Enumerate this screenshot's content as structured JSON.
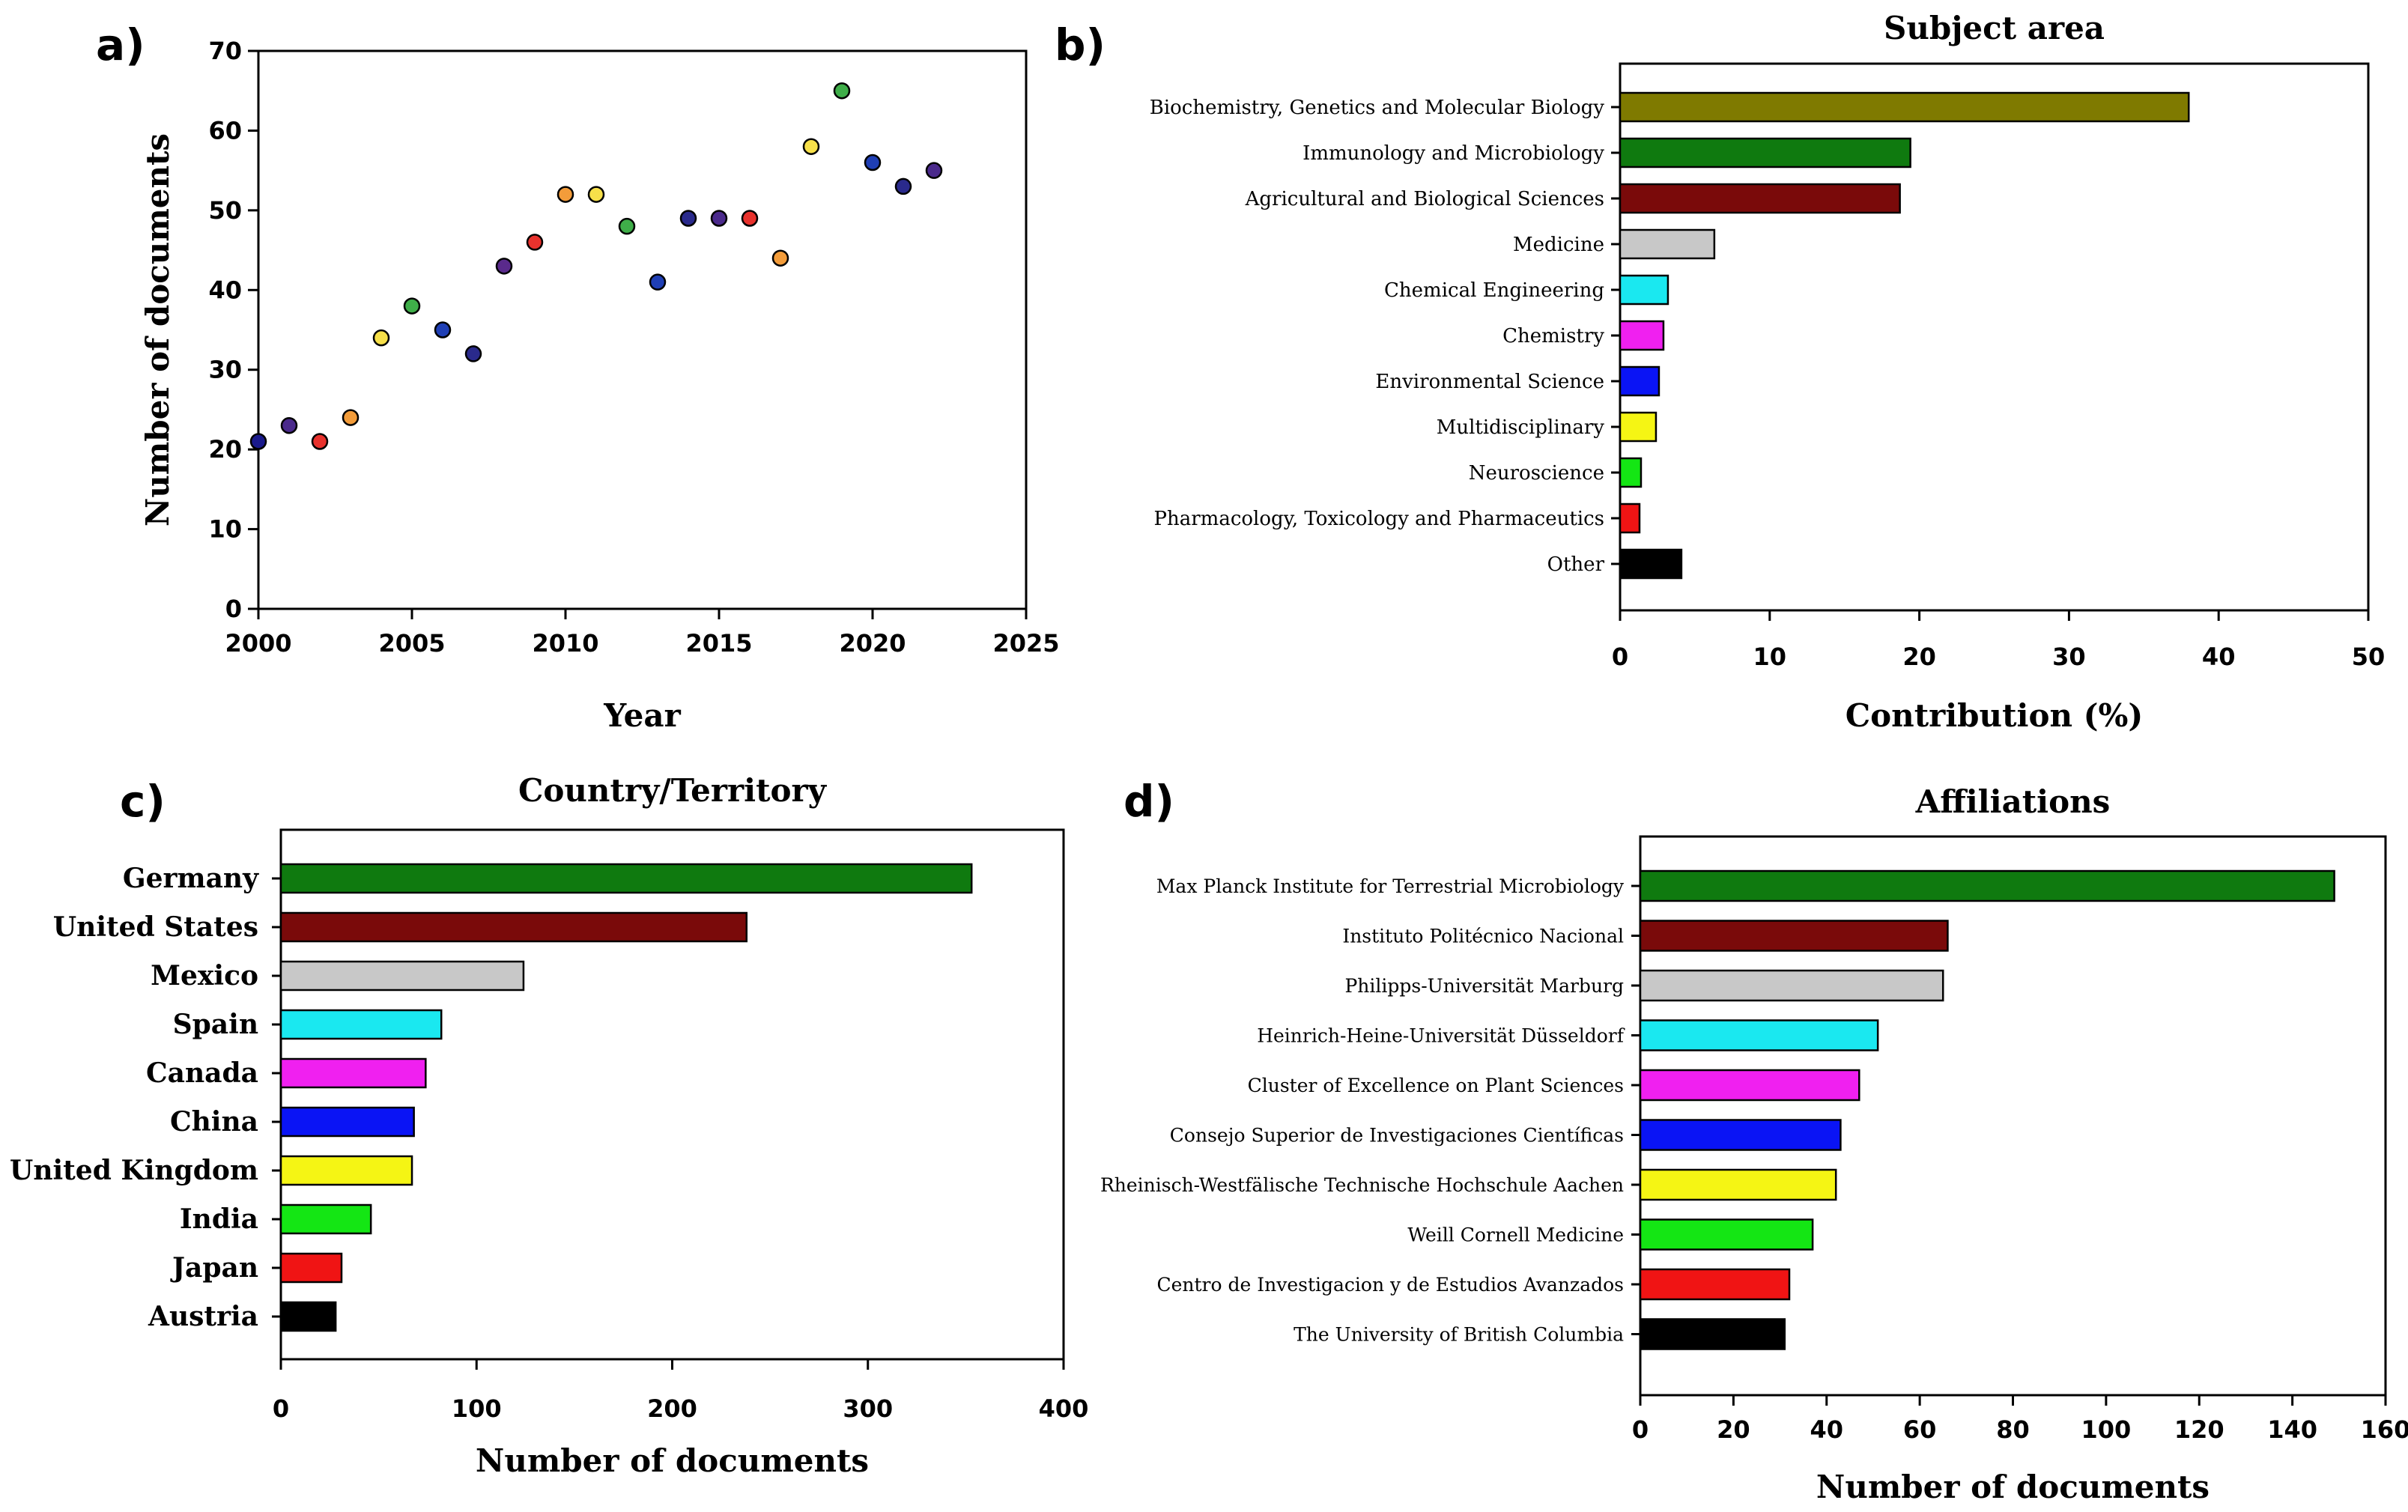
{
  "panels": {
    "a": {
      "letter": "a)"
    },
    "b": {
      "letter": "b)"
    },
    "c": {
      "letter": "c)"
    },
    "d": {
      "letter": "d)"
    }
  },
  "chart_data": [
    {
      "id": "a",
      "type": "scatter",
      "title": "",
      "xlabel": "Year",
      "ylabel": "Number of documents",
      "xlim": [
        2000,
        2025
      ],
      "ylim": [
        0,
        70
      ],
      "xticks": [
        2000,
        2005,
        2010,
        2015,
        2020,
        2025
      ],
      "yticks": [
        0,
        10,
        20,
        30,
        40,
        50,
        60,
        70
      ],
      "points": [
        {
          "x": 2000,
          "y": 21,
          "color": "#1a1a8c"
        },
        {
          "x": 2001,
          "y": 23,
          "color": "#4b2a8c"
        },
        {
          "x": 2002,
          "y": 21,
          "color": "#e8322d"
        },
        {
          "x": 2003,
          "y": 24,
          "color": "#f39c3a"
        },
        {
          "x": 2004,
          "y": 34,
          "color": "#f7e04a"
        },
        {
          "x": 2005,
          "y": 38,
          "color": "#3fae49"
        },
        {
          "x": 2006,
          "y": 35,
          "color": "#1f3fb5"
        },
        {
          "x": 2007,
          "y": 32,
          "color": "#2a2a8c"
        },
        {
          "x": 2008,
          "y": 43,
          "color": "#5a2a8c"
        },
        {
          "x": 2009,
          "y": 46,
          "color": "#e8322d"
        },
        {
          "x": 2010,
          "y": 52,
          "color": "#f39c3a"
        },
        {
          "x": 2011,
          "y": 52,
          "color": "#f7e04a"
        },
        {
          "x": 2012,
          "y": 48,
          "color": "#3fae49"
        },
        {
          "x": 2013,
          "y": 41,
          "color": "#1f3fb5"
        },
        {
          "x": 2014,
          "y": 49,
          "color": "#2a2a8c"
        },
        {
          "x": 2015,
          "y": 49,
          "color": "#4b2a8c"
        },
        {
          "x": 2016,
          "y": 49,
          "color": "#e8322d"
        },
        {
          "x": 2017,
          "y": 44,
          "color": "#f39c3a"
        },
        {
          "x": 2018,
          "y": 58,
          "color": "#f7e04a"
        },
        {
          "x": 2019,
          "y": 65,
          "color": "#3fae49"
        },
        {
          "x": 2020,
          "y": 56,
          "color": "#1f3fb5"
        },
        {
          "x": 2021,
          "y": 53,
          "color": "#2a2a8c"
        },
        {
          "x": 2022,
          "y": 55,
          "color": "#4b2a8c"
        }
      ]
    },
    {
      "id": "b",
      "type": "bar",
      "orientation": "horizontal",
      "title": "Subject area",
      "xlabel": "Contribution (%)",
      "ylabel": "",
      "xlim": [
        0,
        50
      ],
      "xticks": [
        0,
        10,
        20,
        30,
        40,
        50
      ],
      "categories": [
        "Biochemistry, Genetics and Molecular Biology",
        "Immunology and Microbiology",
        "Agricultural and Biological Sciences",
        "Medicine",
        "Chemical Engineering",
        "Chemistry",
        "Environmental Science",
        "Multidisciplinary",
        "Neuroscience",
        "Pharmacology, Toxicology and Pharmaceutics",
        "Other"
      ],
      "values": [
        38.0,
        19.4,
        18.7,
        6.3,
        3.2,
        2.9,
        2.6,
        2.4,
        1.4,
        1.3,
        4.1
      ],
      "colors": [
        "#7f7a00",
        "#0f7a0f",
        "#7a0a0a",
        "#c8c8c8",
        "#1ae8f0",
        "#f020f0",
        "#0a14f5",
        "#f5f514",
        "#14e614",
        "#f01414",
        "#000000"
      ]
    },
    {
      "id": "c",
      "type": "bar",
      "orientation": "horizontal",
      "title": "Country/Territory",
      "xlabel": "Number of documents",
      "ylabel": "",
      "xlim": [
        0,
        400
      ],
      "xticks": [
        0,
        100,
        200,
        300,
        400
      ],
      "categories": [
        "Germany",
        "United States",
        "Mexico",
        "Spain",
        "Canada",
        "China",
        "United Kingdom",
        "India",
        "Japan",
        "Austria"
      ],
      "values": [
        353,
        238,
        124,
        82,
        74,
        68,
        67,
        46,
        31,
        28
      ],
      "colors": [
        "#0f7a0f",
        "#7a0a0a",
        "#c8c8c8",
        "#1ae8f0",
        "#f020f0",
        "#0a14f5",
        "#f5f514",
        "#14e614",
        "#f01414",
        "#000000"
      ]
    },
    {
      "id": "d",
      "type": "bar",
      "orientation": "horizontal",
      "title": "Affiliations",
      "xlabel": "Number of documents",
      "ylabel": "",
      "xlim": [
        0,
        160
      ],
      "xticks": [
        0,
        20,
        40,
        60,
        80,
        100,
        120,
        140,
        160
      ],
      "categories": [
        "Max Planck Institute for Terrestrial Microbiology",
        "Instituto Politécnico Nacional",
        "Philipps-Universität Marburg",
        "Heinrich-Heine-Universität Düsseldorf",
        "Cluster of Excellence on Plant Sciences",
        "Consejo Superior de Investigaciones Científicas",
        "Rheinisch-Westfälische Technische Hochschule Aachen",
        "Weill Cornell Medicine",
        "Centro de Investigacion y de Estudios Avanzados",
        "The University of British Columbia"
      ],
      "values": [
        149,
        66,
        65,
        51,
        47,
        43,
        42,
        37,
        32,
        31
      ],
      "colors": [
        "#0f7a0f",
        "#7a0a0a",
        "#c8c8c8",
        "#1ae8f0",
        "#f020f0",
        "#0a14f5",
        "#f5f514",
        "#14e614",
        "#f01414",
        "#000000"
      ]
    }
  ]
}
